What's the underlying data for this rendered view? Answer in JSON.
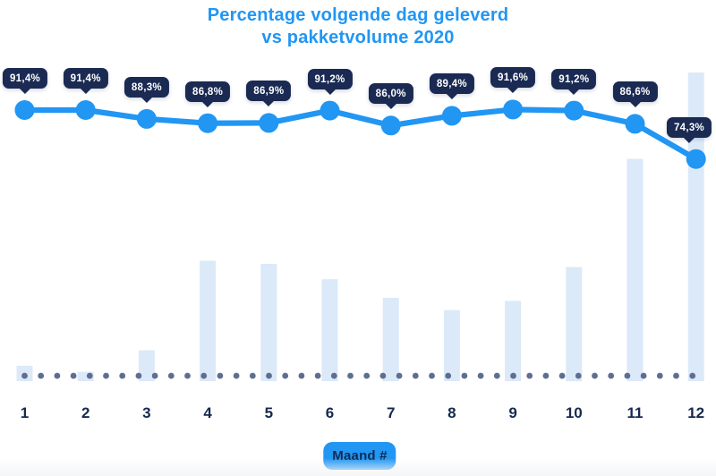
{
  "page": {
    "title_line1": "Percentage volgende dag geleverd",
    "title_line2": "vs pakketvolume 2020",
    "xaxis_button": "Maand #"
  },
  "colors": {
    "accent_blue": "#2196f3",
    "tooltip_navy": "#1a2a52",
    "tooltip_text": "#ffffff",
    "bar_light_blue": "#dbe9f8",
    "dot_slate": "#5d6e90",
    "text_navy": "#16294f"
  },
  "chart_data": {
    "type": "line",
    "subtype": "line with data-label tooltips over background volume bars, no visible y-axis",
    "title": "Percentage volgende dag geleverd vs pakketvolume 2020",
    "xlabel": "Maand #",
    "categories": [
      "1",
      "2",
      "3",
      "4",
      "5",
      "6",
      "7",
      "8",
      "9",
      "10",
      "11",
      "12"
    ],
    "series": [
      {
        "name": "Percentage volgende dag geleverd",
        "type": "line",
        "unit": "%",
        "values": [
          91.4,
          91.4,
          88.3,
          86.8,
          86.9,
          91.2,
          86.0,
          89.4,
          91.6,
          91.2,
          86.6,
          74.3
        ],
        "labels": [
          "91,4%",
          "91,4%",
          "88,3%",
          "86,8%",
          "86,9%",
          "91,2%",
          "86,0%",
          "89,4%",
          "91,6%",
          "91,2%",
          "86,6%",
          "74,3%"
        ]
      },
      {
        "name": "Pakketvolume 2020",
        "type": "bar",
        "unit": "relative volume index (unlabeled axis, max month = 100)",
        "values": [
          5,
          3,
          10,
          39,
          38,
          33,
          27,
          23,
          26,
          37,
          72,
          100
        ]
      }
    ],
    "legend_position": "none",
    "grid": false,
    "baseline_style": "dotted"
  }
}
